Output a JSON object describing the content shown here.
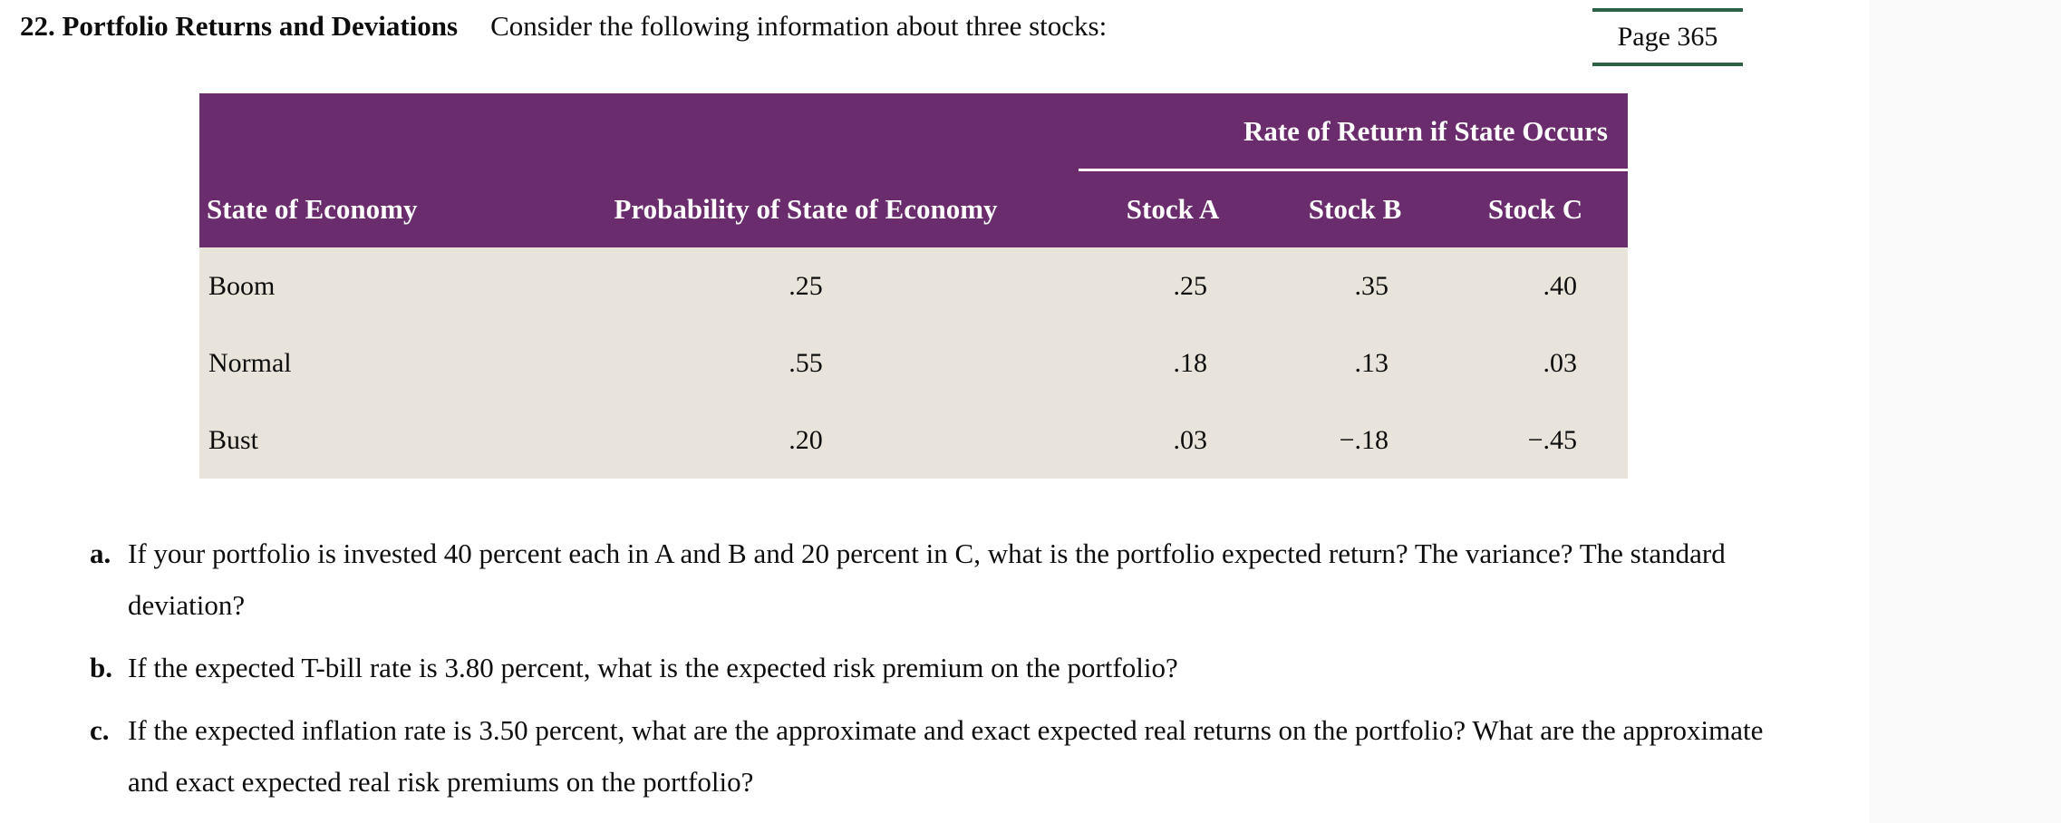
{
  "header": {
    "problem_label": "22. Portfolio Returns and Deviations",
    "intro_text": "Consider the following information about three stocks:",
    "page_reference": "Page 365"
  },
  "table": {
    "group_header": "Rate of Return if State Occurs",
    "columns": {
      "state": "State of Economy",
      "probability": "Probability of State of Economy",
      "stock_a": "Stock A",
      "stock_b": "Stock B",
      "stock_c": "Stock C"
    },
    "rows": [
      {
        "state": "Boom",
        "probability": ".25",
        "stock_a": ".25",
        "stock_b": ".35",
        "stock_c": ".40"
      },
      {
        "state": "Normal",
        "probability": ".55",
        "stock_a": ".18",
        "stock_b": ".13",
        "stock_c": ".03"
      },
      {
        "state": "Bust",
        "probability": ".20",
        "stock_a": ".03",
        "stock_b": "−.18",
        "stock_c": "−.45"
      }
    ]
  },
  "questions": [
    {
      "label": "a.",
      "text": "If your portfolio is invested 40 percent each in A and B and 20 percent in C, what is the portfolio expected return? The variance? The standard deviation?"
    },
    {
      "label": "b.",
      "text": "If the expected T-bill rate is 3.80 percent, what is the expected risk premium on the portfolio?"
    },
    {
      "label": "c.",
      "text": "If the expected inflation rate is 3.50 percent, what are the approximate and exact expected real returns on the portfolio? What are the approximate and exact expected real risk premiums on the portfolio?"
    }
  ],
  "colors": {
    "table_header_bg": "#6a2c6c",
    "table_body_bg": "#e8e4dc",
    "page_ref_line": "#2d6045",
    "right_margin_bg": "#fafafa"
  }
}
